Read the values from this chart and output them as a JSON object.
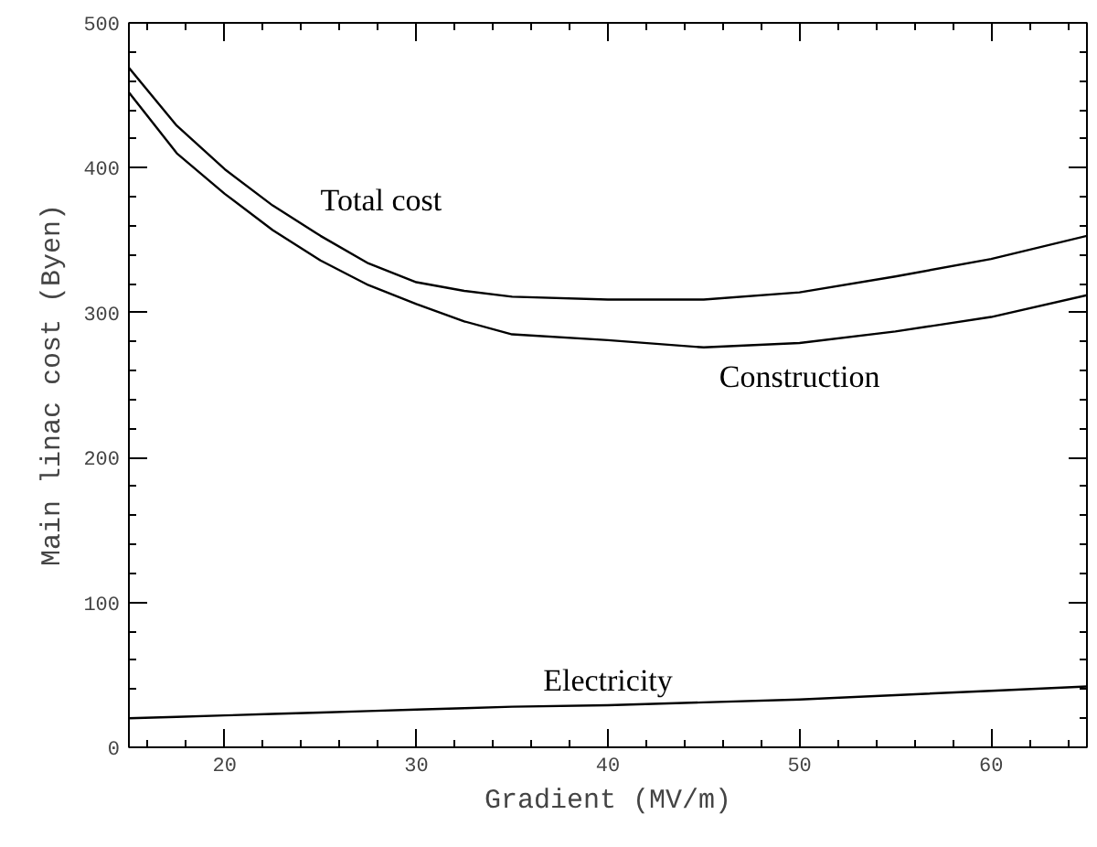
{
  "chart_data": {
    "type": "line",
    "xlabel": "Gradient (MV/m)",
    "ylabel": "Main linac cost (Byen)",
    "x": [
      15,
      17.5,
      20,
      22.5,
      25,
      27.5,
      30,
      32.5,
      35,
      40,
      45,
      50,
      55,
      60,
      65
    ],
    "series": [
      {
        "name": "Total cost",
        "color": "#000000",
        "values": [
          469,
          429,
          399,
          374,
          353,
          334,
          321,
          315,
          311,
          309,
          309,
          314,
          325,
          337,
          353
        ]
      },
      {
        "name": "Construction",
        "color": "#000000",
        "values": [
          452,
          410,
          382,
          357,
          336,
          319,
          306,
          294,
          285,
          281,
          276,
          279,
          287,
          297,
          312
        ]
      },
      {
        "name": "Electricity",
        "color": "#000000",
        "values": [
          20,
          21,
          22,
          23,
          24,
          25,
          26,
          27,
          28,
          29,
          31,
          33,
          36,
          39,
          42
        ]
      }
    ],
    "xlim": [
      15,
      65
    ],
    "ylim": [
      0,
      500
    ],
    "xticks": [
      20,
      30,
      40,
      50,
      60
    ],
    "yticks": [
      0,
      100,
      200,
      300,
      400,
      500
    ],
    "grid": false,
    "line_style": "solid",
    "marker": "none"
  }
}
